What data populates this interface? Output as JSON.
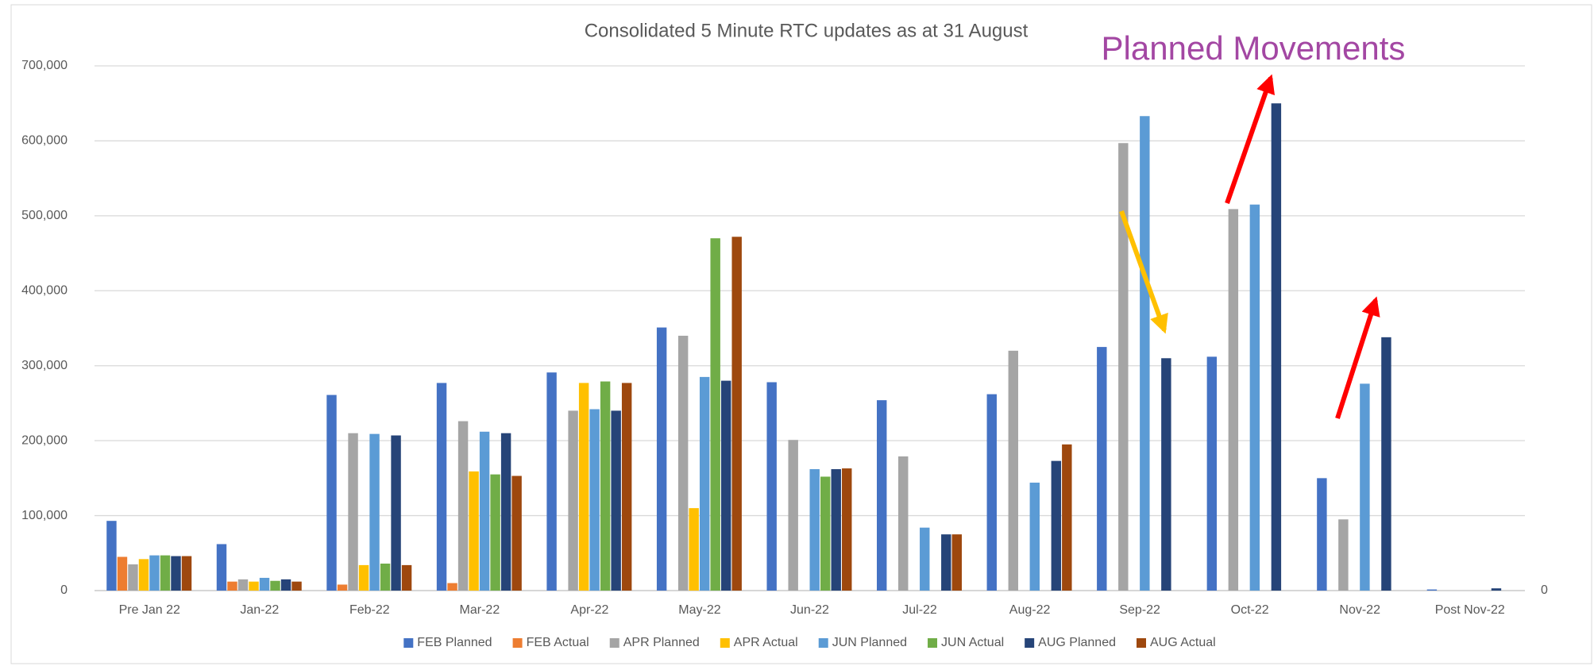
{
  "chart_data": {
    "type": "bar",
    "title": "Consolidated 5 Minute RTC updates as at 31 August",
    "annotations": [
      "Planned Movements"
    ],
    "categories": [
      "Pre Jan 22",
      "Jan-22",
      "Feb-22",
      "Mar-22",
      "Apr-22",
      "May-22",
      "Jun-22",
      "Jul-22",
      "Aug-22",
      "Sep-22",
      "Oct-22",
      "Nov-22",
      "Post Nov-22"
    ],
    "series": [
      {
        "name": "FEB Planned",
        "color": "#4472c4",
        "values": [
          93000,
          62000,
          261000,
          277000,
          291000,
          351000,
          278000,
          254000,
          262000,
          325000,
          312000,
          150000,
          1500
        ]
      },
      {
        "name": "FEB Actual",
        "color": "#ed7d31",
        "values": [
          45000,
          12000,
          8000,
          10000,
          null,
          null,
          null,
          null,
          null,
          null,
          null,
          null,
          null
        ]
      },
      {
        "name": "APR Planned",
        "color": "#a5a5a5",
        "values": [
          35000,
          15000,
          210000,
          226000,
          240000,
          340000,
          201000,
          179000,
          320000,
          597000,
          509000,
          95000,
          null
        ]
      },
      {
        "name": "APR Actual",
        "color": "#ffc000",
        "values": [
          42000,
          12000,
          34000,
          159000,
          277000,
          110000,
          null,
          null,
          null,
          null,
          null,
          null,
          null
        ]
      },
      {
        "name": "JUN Planned",
        "color": "#5b9bd5",
        "values": [
          47000,
          17000,
          209000,
          212000,
          242000,
          285000,
          162000,
          84000,
          144000,
          633000,
          515000,
          276000,
          null
        ]
      },
      {
        "name": "JUN Actual",
        "color": "#70ad47",
        "values": [
          47000,
          13000,
          36000,
          155000,
          279000,
          470000,
          152000,
          null,
          null,
          null,
          null,
          null,
          null
        ]
      },
      {
        "name": "AUG Planned",
        "color": "#264478",
        "values": [
          46000,
          15000,
          207000,
          210000,
          240000,
          280000,
          162000,
          75000,
          173000,
          310000,
          650000,
          338000,
          3000
        ]
      },
      {
        "name": "AUG Actual",
        "color": "#9e480e",
        "values": [
          46000,
          12000,
          34000,
          153000,
          277000,
          472000,
          163000,
          75000,
          195000,
          null,
          null,
          null,
          null
        ]
      }
    ],
    "ylim": [
      0,
      700000
    ],
    "yticks": [
      0,
      {
        "value": 100000,
        "label": "100,000"
      },
      {
        "value": 200000,
        "label": "200,000"
      },
      {
        "value": 300000,
        "label": "300,000"
      },
      {
        "value": 400000,
        "label": "400,000"
      },
      {
        "value": 500000,
        "label": "500,000"
      },
      {
        "value": 600000,
        "label": "600,000"
      },
      {
        "value": 700000,
        "label": "700,000"
      }
    ],
    "y2ticks": [
      0
    ],
    "grid": true,
    "legend": "bottom"
  }
}
